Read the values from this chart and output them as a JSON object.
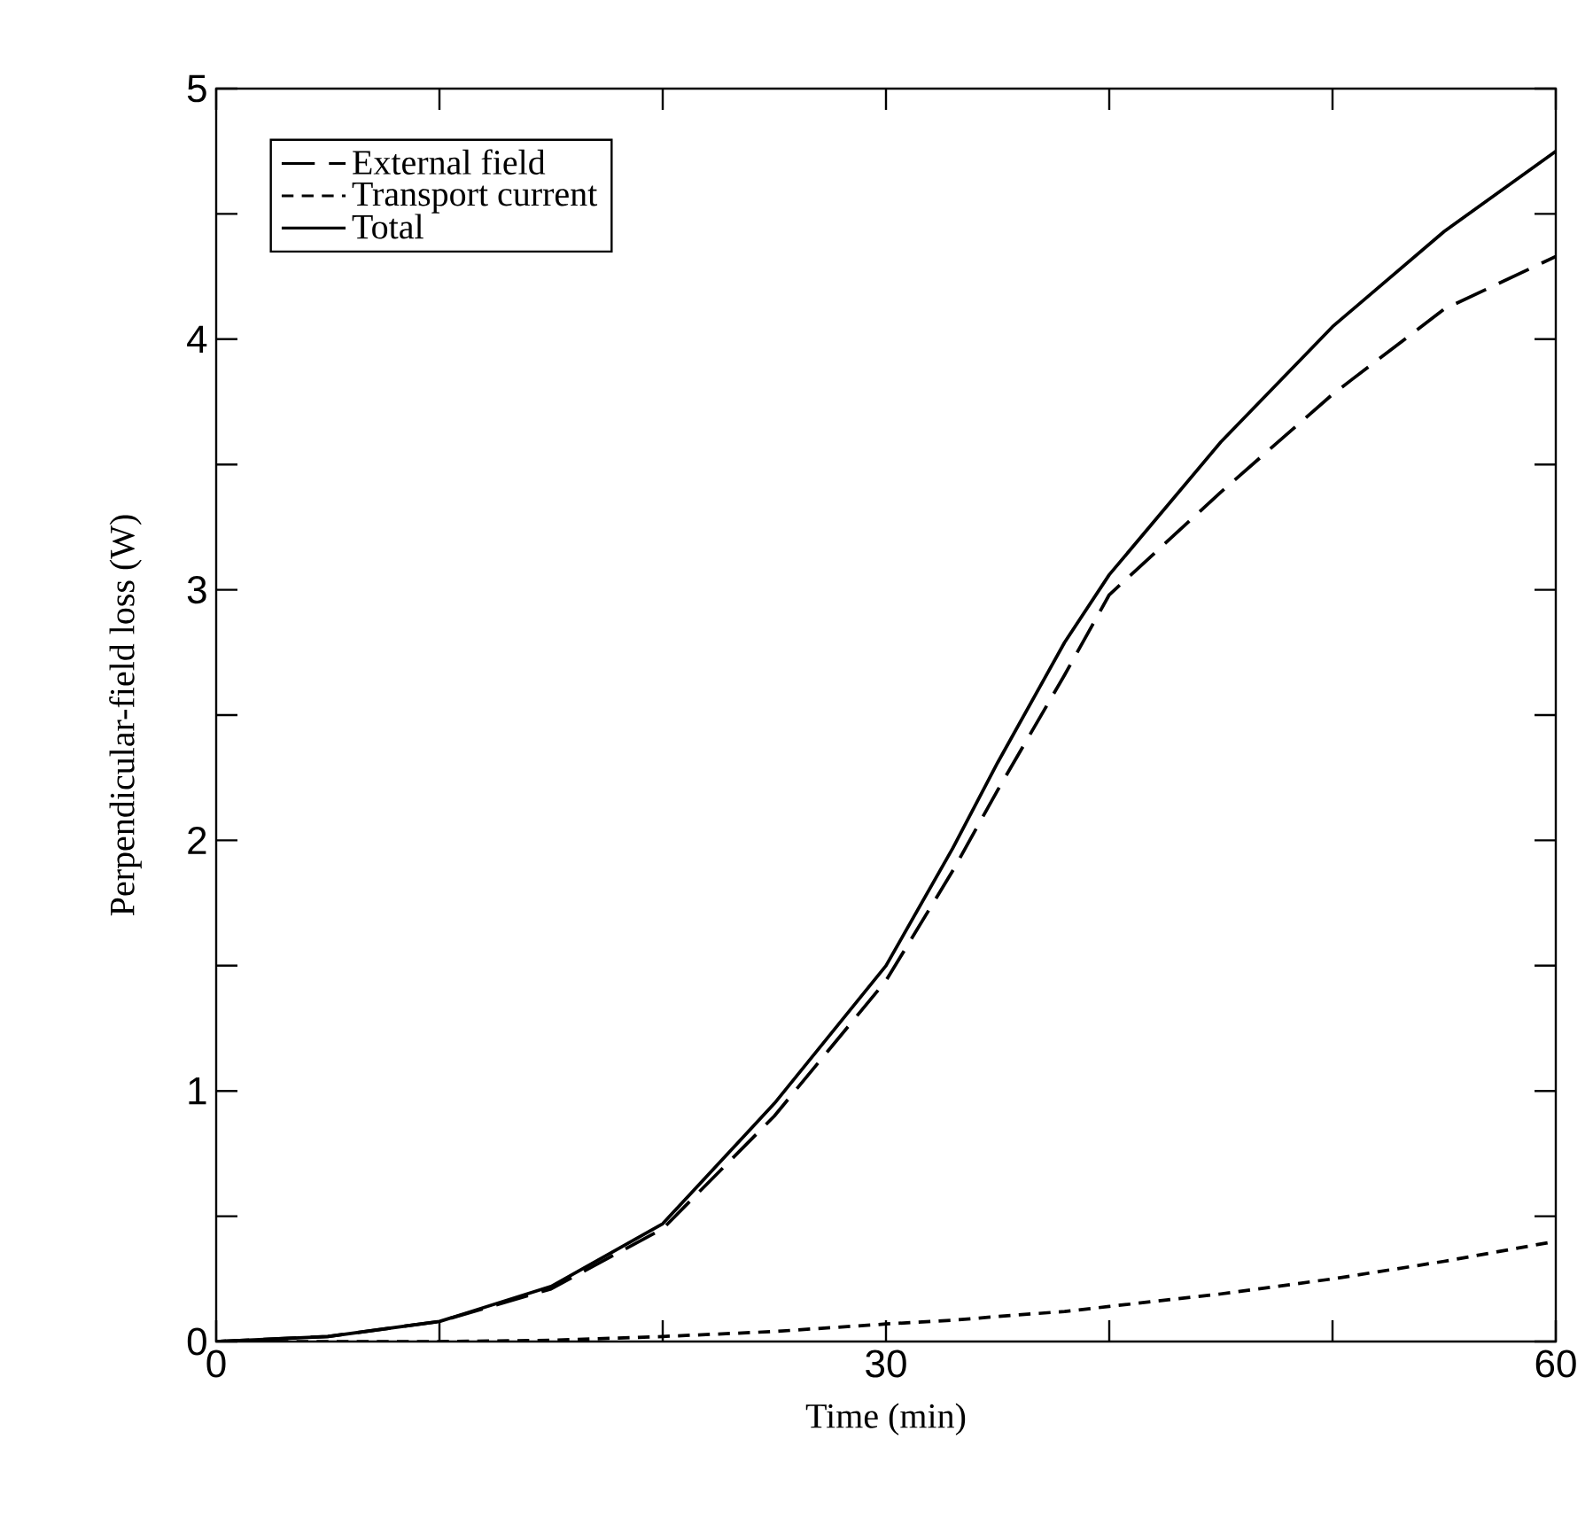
{
  "chart_data": {
    "type": "line",
    "xlabel": "Time (min)",
    "ylabel": "Perpendicular-field loss (W)",
    "xlim": [
      0,
      60
    ],
    "ylim": [
      0,
      5
    ],
    "xticks": [
      0,
      {
        "value": 10,
        "label": null
      },
      {
        "value": 20,
        "label": null
      },
      30,
      {
        "value": 40,
        "label": null
      },
      {
        "value": 50,
        "label": null
      },
      60
    ],
    "yticks": [
      0,
      {
        "value": 0.5,
        "label": null
      },
      1,
      {
        "value": 1.5,
        "label": null
      },
      2,
      {
        "value": 2.5,
        "label": null
      },
      3,
      {
        "value": 3.5,
        "label": null
      },
      4,
      {
        "value": 4.5,
        "label": null
      },
      5
    ],
    "x": [
      0,
      5,
      10,
      15,
      20,
      25,
      30,
      33,
      35,
      38,
      40,
      45,
      50,
      55,
      60
    ],
    "series": [
      {
        "name": "External field",
        "color": "#000000",
        "line_style": "dashed",
        "values": [
          0,
          0.02,
          0.08,
          0.21,
          0.45,
          0.9,
          1.44,
          1.88,
          2.2,
          2.66,
          2.98,
          3.39,
          3.78,
          4.12,
          4.33
        ]
      },
      {
        "name": "Transport current",
        "color": "#000000",
        "line_style": "dotted",
        "values": [
          0,
          0,
          0,
          0.005,
          0.02,
          0.04,
          0.07,
          0.085,
          0.1,
          0.12,
          0.14,
          0.19,
          0.25,
          0.32,
          0.4
        ]
      },
      {
        "name": "Total",
        "color": "#000000",
        "line_style": "solid",
        "values": [
          0,
          0.02,
          0.08,
          0.22,
          0.47,
          0.95,
          1.5,
          1.97,
          2.31,
          2.79,
          3.06,
          3.59,
          4.05,
          4.43,
          4.75
        ]
      }
    ],
    "legend": "top left",
    "marker": "none",
    "grid": false
  }
}
